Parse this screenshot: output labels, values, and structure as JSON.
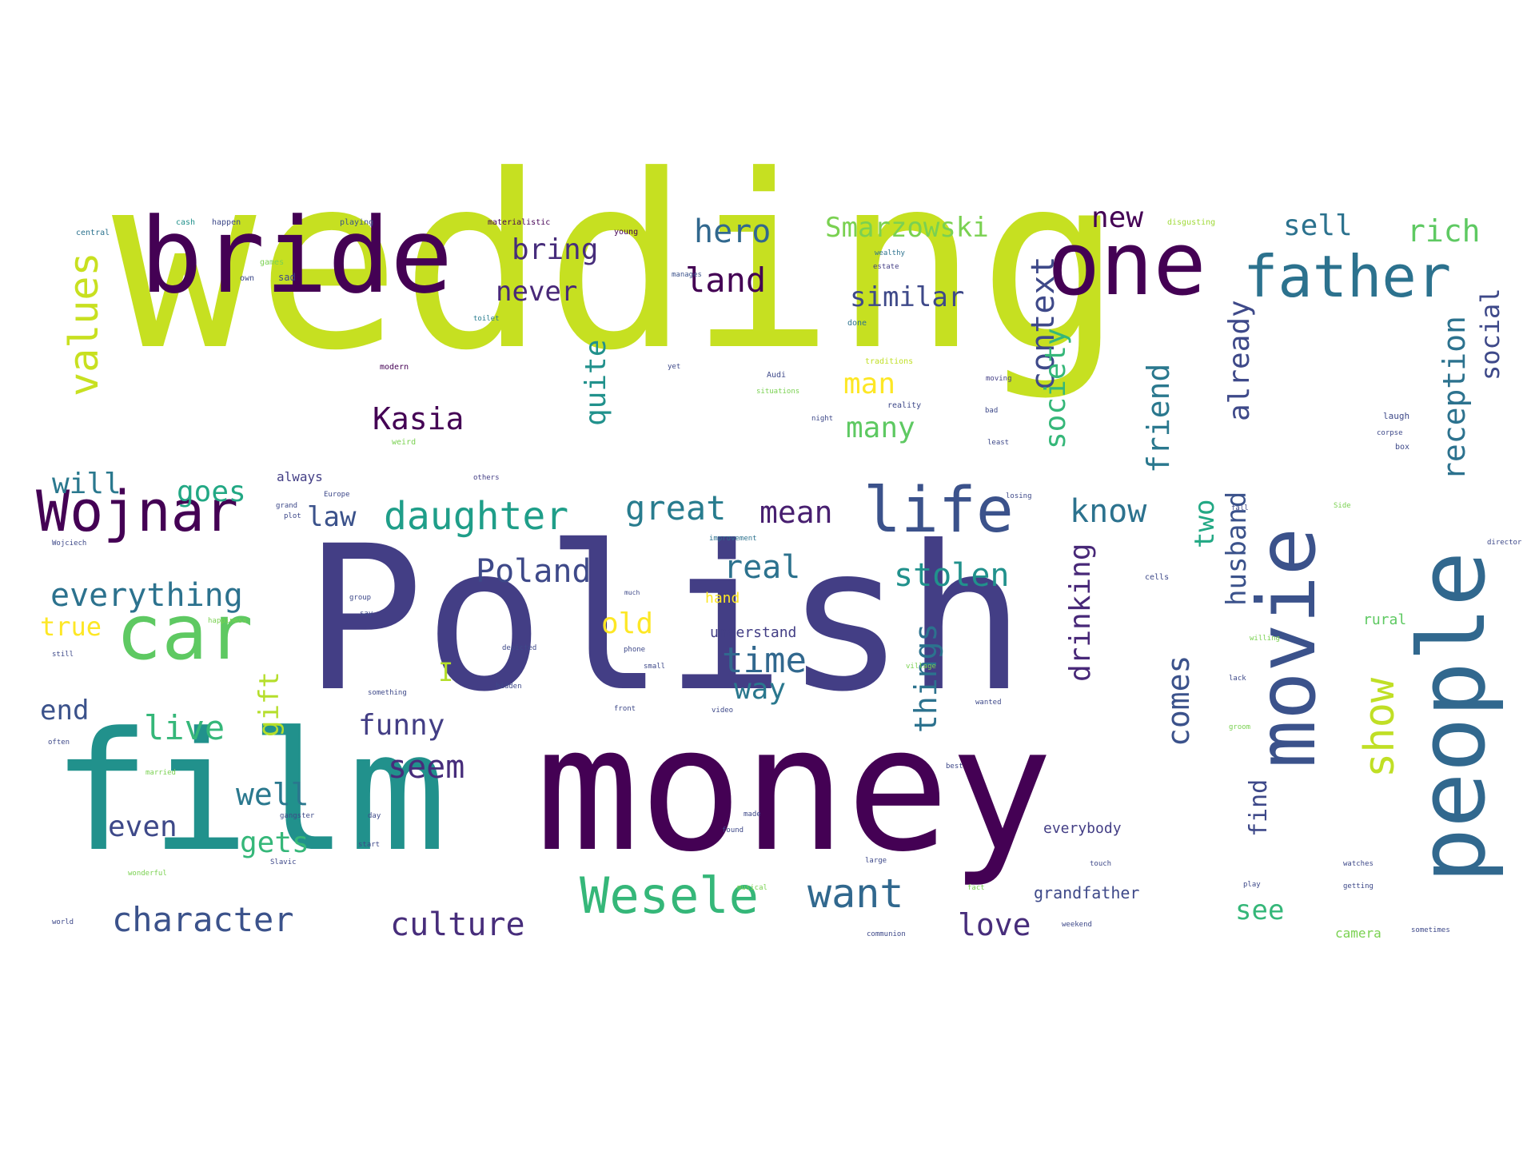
{
  "words": [
    {
      "text": "wedding",
      "color": "#c6e021"
    },
    {
      "text": "Polish",
      "color": "#433e85"
    },
    {
      "text": "money",
      "color": "#440154"
    },
    {
      "text": "film",
      "color": "#21918c"
    },
    {
      "text": "bride",
      "color": "#440154"
    },
    {
      "text": "one",
      "color": "#440154"
    },
    {
      "text": "movie",
      "color": "#3b528b"
    },
    {
      "text": "people",
      "color": "#31688e"
    },
    {
      "text": "car",
      "color": "#5ec962"
    },
    {
      "text": "father",
      "color": "#2c728e"
    },
    {
      "text": "Wojnar",
      "color": "#440154"
    },
    {
      "text": "life",
      "color": "#3b528b"
    },
    {
      "text": "Wesele",
      "color": "#35b779"
    },
    {
      "text": "daughter",
      "color": "#1f9e89"
    },
    {
      "text": "values",
      "color": "#c8e020"
    },
    {
      "text": "show",
      "color": "#c0df25"
    },
    {
      "text": "want",
      "color": "#31688e"
    },
    {
      "text": "character",
      "color": "#3b528b"
    },
    {
      "text": "culture",
      "color": "#472d7b"
    },
    {
      "text": "everything",
      "color": "#2c728e"
    },
    {
      "text": "Poland",
      "color": "#3e4989"
    },
    {
      "text": "great",
      "color": "#287c8e"
    },
    {
      "text": "hero",
      "color": "#31688e"
    },
    {
      "text": "bring",
      "color": "#472d7b"
    },
    {
      "text": "land",
      "color": "#440154"
    },
    {
      "text": "Smarzowski",
      "color": "#7ad151"
    },
    {
      "text": "new",
      "color": "#440154"
    },
    {
      "text": "sell",
      "color": "#2c728e"
    },
    {
      "text": "rich",
      "color": "#5ec962"
    },
    {
      "text": "never",
      "color": "#482878"
    },
    {
      "text": "similar",
      "color": "#3e4989"
    },
    {
      "text": "context",
      "color": "#3e4989"
    },
    {
      "text": "society",
      "color": "#35b779"
    },
    {
      "text": "friend",
      "color": "#2a788e"
    },
    {
      "text": "already",
      "color": "#3e4989"
    },
    {
      "text": "reception",
      "color": "#2c728e"
    },
    {
      "text": "social",
      "color": "#3e4989"
    },
    {
      "text": "quite",
      "color": "#21918c"
    },
    {
      "text": "Kasia",
      "color": "#440154"
    },
    {
      "text": "man",
      "color": "#fde725"
    },
    {
      "text": "many",
      "color": "#5ec962"
    },
    {
      "text": "will",
      "color": "#2a788e"
    },
    {
      "text": "goes",
      "color": "#22a884"
    },
    {
      "text": "law",
      "color": "#3b528b"
    },
    {
      "text": "mean",
      "color": "#481f70"
    },
    {
      "text": "know",
      "color": "#2c728e"
    },
    {
      "text": "two",
      "color": "#22a884"
    },
    {
      "text": "husband",
      "color": "#3b528b"
    },
    {
      "text": "real",
      "color": "#2c728e"
    },
    {
      "text": "stolen",
      "color": "#21918c"
    },
    {
      "text": "drinking",
      "color": "#482878"
    },
    {
      "text": "true",
      "color": "#fde725"
    },
    {
      "text": "old",
      "color": "#fde725"
    },
    {
      "text": "time",
      "color": "#31688e"
    },
    {
      "text": "way",
      "color": "#2a788e"
    },
    {
      "text": "things",
      "color": "#2c728e"
    },
    {
      "text": "comes",
      "color": "#3b528b"
    },
    {
      "text": "gift",
      "color": "#b5de2b"
    },
    {
      "text": "end",
      "color": "#3b528b"
    },
    {
      "text": "live",
      "color": "#35b779"
    },
    {
      "text": "funny",
      "color": "#433e85"
    },
    {
      "text": "seem",
      "color": "#472d7b"
    },
    {
      "text": "well",
      "color": "#2a788e"
    },
    {
      "text": "even",
      "color": "#3e4989"
    },
    {
      "text": "gets",
      "color": "#35b779"
    },
    {
      "text": "find",
      "color": "#3e4989"
    },
    {
      "text": "love",
      "color": "#472d7b"
    },
    {
      "text": "see",
      "color": "#35b779"
    },
    {
      "text": "I",
      "color": "#b5de2b"
    },
    {
      "text": "understand",
      "color": "#433e85"
    },
    {
      "text": "grandfather",
      "color": "#3e4989"
    },
    {
      "text": "everybody",
      "color": "#433e85"
    },
    {
      "text": "hand",
      "color": "#fde725"
    },
    {
      "text": "rural",
      "color": "#5ec962"
    },
    {
      "text": "always",
      "color": "#433e85"
    },
    {
      "text": "camera",
      "color": "#7ad151"
    },
    {
      "text": "central",
      "color": "#2c728e"
    },
    {
      "text": "cash",
      "color": "#21918c"
    },
    {
      "text": "happen",
      "color": "#3e4989"
    },
    {
      "text": "playing",
      "color": "#3b528b"
    },
    {
      "text": "materialistic",
      "color": "#440154"
    },
    {
      "text": "young",
      "color": "#440154"
    },
    {
      "text": "disgusting",
      "color": "#a0da39"
    },
    {
      "text": "games",
      "color": "#7ad151"
    },
    {
      "text": "own",
      "color": "#3e4989"
    },
    {
      "text": "sad",
      "color": "#3e4989"
    },
    {
      "text": "wealthy",
      "color": "#2c728e"
    },
    {
      "text": "estate",
      "color": "#433e85"
    },
    {
      "text": "manages",
      "color": "#3b528b"
    },
    {
      "text": "toilet",
      "color": "#287c8e"
    },
    {
      "text": "done",
      "color": "#2c728e"
    },
    {
      "text": "modern",
      "color": "#440154"
    },
    {
      "text": "traditions",
      "color": "#c0df25"
    },
    {
      "text": "yet",
      "color": "#3e4989"
    },
    {
      "text": "Audi",
      "color": "#3e4989"
    },
    {
      "text": "situations",
      "color": "#7ad151"
    },
    {
      "text": "moving",
      "color": "#433e85"
    },
    {
      "text": "reality",
      "color": "#3e4989"
    },
    {
      "text": "night",
      "color": "#3e4989"
    },
    {
      "text": "bad",
      "color": "#3e4989"
    },
    {
      "text": "laugh",
      "color": "#3e4989"
    },
    {
      "text": "corpse",
      "color": "#3e4989"
    },
    {
      "text": "box",
      "color": "#3e4989"
    },
    {
      "text": "least",
      "color": "#3e4989"
    },
    {
      "text": "weird",
      "color": "#7ad151"
    },
    {
      "text": "Europe",
      "color": "#3e4989"
    },
    {
      "text": "others",
      "color": "#433e85"
    },
    {
      "text": "grand",
      "color": "#3e4989"
    },
    {
      "text": "losing",
      "color": "#3e4989"
    },
    {
      "text": "fall",
      "color": "#3e4989"
    },
    {
      "text": "Side",
      "color": "#7ad151"
    },
    {
      "text": "plot",
      "color": "#3e4989"
    },
    {
      "text": "Wojciech",
      "color": "#3e4989"
    },
    {
      "text": "improvement",
      "color": "#2c728e"
    },
    {
      "text": "cells",
      "color": "#3e4989"
    },
    {
      "text": "director",
      "color": "#3e4989"
    },
    {
      "text": "much",
      "color": "#3e4989"
    },
    {
      "text": "group",
      "color": "#3e4989"
    },
    {
      "text": "say",
      "color": "#3e4989"
    },
    {
      "text": "happiness",
      "color": "#7ad151"
    },
    {
      "text": "village",
      "color": "#7ad151"
    },
    {
      "text": "willing",
      "color": "#7ad151"
    },
    {
      "text": "still",
      "color": "#3e4989"
    },
    {
      "text": "depicted",
      "color": "#3e4989"
    },
    {
      "text": "phone",
      "color": "#3e4989"
    },
    {
      "text": "small",
      "color": "#3e4989"
    },
    {
      "text": "lack",
      "color": "#3e4989"
    },
    {
      "text": "something",
      "color": "#3e4989"
    },
    {
      "text": "hidden",
      "color": "#3e4989"
    },
    {
      "text": "front",
      "color": "#3e4989"
    },
    {
      "text": "video",
      "color": "#3e4989"
    },
    {
      "text": "wanted",
      "color": "#3e4989"
    },
    {
      "text": "often",
      "color": "#3e4989"
    },
    {
      "text": "groom",
      "color": "#7ad151"
    },
    {
      "text": "best",
      "color": "#3e4989"
    },
    {
      "text": "married",
      "color": "#7ad151"
    },
    {
      "text": "gangster",
      "color": "#3e4989"
    },
    {
      "text": "day",
      "color": "#3e4989"
    },
    {
      "text": "made",
      "color": "#3e4989"
    },
    {
      "text": "found",
      "color": "#3e4989"
    },
    {
      "text": "start",
      "color": "#3e4989"
    },
    {
      "text": "wonderful",
      "color": "#7ad151"
    },
    {
      "text": "Slavic",
      "color": "#3e4989"
    },
    {
      "text": "large",
      "color": "#3e4989"
    },
    {
      "text": "touch",
      "color": "#3e4989"
    },
    {
      "text": "watches",
      "color": "#3e4989"
    },
    {
      "text": "fact",
      "color": "#7ad151"
    },
    {
      "text": "musical",
      "color": "#7ad151"
    },
    {
      "text": "play",
      "color": "#3e4989"
    },
    {
      "text": "getting",
      "color": "#3e4989"
    },
    {
      "text": "world",
      "color": "#3e4989"
    },
    {
      "text": "communion",
      "color": "#3e4989"
    },
    {
      "text": "weekend",
      "color": "#3e4989"
    },
    {
      "text": "sometimes",
      "color": "#3e4989"
    }
  ]
}
